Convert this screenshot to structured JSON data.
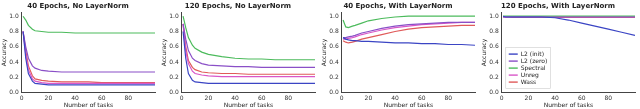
{
  "chart_data": [
    {
      "type": "line",
      "title": "40 Epochs, No LayerNorm",
      "x_label": "Number of tasks",
      "y_label": "Accuracy",
      "x": [
        1,
        3,
        5,
        8,
        10,
        15,
        20,
        30,
        40,
        50,
        60,
        70,
        80,
        90,
        100
      ],
      "xlim": [
        0,
        100
      ],
      "xticks": [
        0,
        20,
        40,
        60,
        80
      ],
      "ylim": [
        0,
        1.05
      ],
      "yticks": [
        {
          "value": 0,
          "label": "0.0"
        },
        {
          "value": 0.2,
          "label": "0.2"
        },
        {
          "value": 0.4,
          "label": "0.4"
        },
        {
          "value": 0.6,
          "label": "0.6"
        },
        {
          "value": 0.8,
          "label": "0.8"
        },
        {
          "value": 1,
          "label": "1.0"
        }
      ],
      "grid": false,
      "series": [
        {
          "name": "L2 (init)",
          "color": "#3b45c4",
          "values": [
            0.8,
            0.45,
            0.25,
            0.15,
            0.12,
            0.11,
            0.1,
            0.1,
            0.1,
            0.1,
            0.1,
            0.1,
            0.1,
            0.1,
            0.1
          ]
        },
        {
          "name": "L2 (zero)",
          "color": "#8a4fc7",
          "values": [
            0.8,
            0.6,
            0.45,
            0.35,
            0.32,
            0.29,
            0.28,
            0.27,
            0.27,
            0.27,
            0.27,
            0.27,
            0.27,
            0.27,
            0.27
          ]
        },
        {
          "name": "Spectral",
          "color": "#4cbb5c",
          "values": [
            1.0,
            0.95,
            0.88,
            0.83,
            0.81,
            0.8,
            0.79,
            0.79,
            0.78,
            0.78,
            0.78,
            0.78,
            0.78,
            0.78,
            0.78
          ]
        },
        {
          "name": "Unreg",
          "color": "#d957c8",
          "values": [
            0.8,
            0.5,
            0.3,
            0.18,
            0.15,
            0.13,
            0.12,
            0.12,
            0.12,
            0.12,
            0.12,
            0.12,
            0.12,
            0.12,
            0.12
          ]
        },
        {
          "name": "Wass",
          "color": "#e05a5a",
          "values": [
            0.8,
            0.55,
            0.35,
            0.22,
            0.18,
            0.16,
            0.15,
            0.14,
            0.14,
            0.14,
            0.13,
            0.13,
            0.13,
            0.13,
            0.13
          ]
        }
      ]
    },
    {
      "type": "line",
      "title": "120 Epochs, No LayerNorm",
      "x_label": "Number of tasks",
      "y_label": "Accuracy",
      "x": [
        1,
        3,
        5,
        8,
        10,
        15,
        20,
        30,
        40,
        50,
        60,
        70,
        80,
        90,
        100
      ],
      "xlim": [
        0,
        100
      ],
      "xticks": [
        0,
        20,
        40,
        60,
        80
      ],
      "ylim": [
        0,
        1.05
      ],
      "yticks": [
        {
          "value": 0,
          "label": "0.0"
        },
        {
          "value": 0.2,
          "label": "0.2"
        },
        {
          "value": 0.4,
          "label": "0.4"
        },
        {
          "value": 0.6,
          "label": "0.6"
        },
        {
          "value": 0.8,
          "label": "0.8"
        },
        {
          "value": 1,
          "label": "1.0"
        }
      ],
      "grid": false,
      "series": [
        {
          "name": "L2 (init)",
          "color": "#3b45c4",
          "values": [
            0.8,
            0.45,
            0.25,
            0.16,
            0.14,
            0.13,
            0.12,
            0.12,
            0.12,
            0.12,
            0.12,
            0.12,
            0.12,
            0.12,
            0.12
          ]
        },
        {
          "name": "L2 (zero)",
          "color": "#8a4fc7",
          "values": [
            0.9,
            0.7,
            0.55,
            0.45,
            0.42,
            0.38,
            0.36,
            0.35,
            0.34,
            0.34,
            0.33,
            0.33,
            0.33,
            0.33,
            0.33
          ]
        },
        {
          "name": "Spectral",
          "color": "#4cbb5c",
          "values": [
            1.0,
            0.85,
            0.72,
            0.62,
            0.58,
            0.53,
            0.5,
            0.47,
            0.45,
            0.44,
            0.44,
            0.43,
            0.43,
            0.43,
            0.43
          ]
        },
        {
          "name": "Unreg",
          "color": "#d957c8",
          "values": [
            0.9,
            0.55,
            0.38,
            0.28,
            0.25,
            0.23,
            0.22,
            0.21,
            0.21,
            0.21,
            0.21,
            0.21,
            0.21,
            0.21,
            0.21
          ]
        },
        {
          "name": "Wass",
          "color": "#e05a5a",
          "values": [
            0.9,
            0.6,
            0.42,
            0.33,
            0.3,
            0.27,
            0.26,
            0.25,
            0.25,
            0.24,
            0.24,
            0.24,
            0.24,
            0.24,
            0.24
          ]
        }
      ]
    },
    {
      "type": "line",
      "title": "40 Epochs, With LayerNorm",
      "x_label": "Number of tasks",
      "y_label": "Accuracy",
      "x": [
        1,
        3,
        5,
        8,
        10,
        15,
        20,
        30,
        40,
        50,
        60,
        70,
        80,
        90,
        100
      ],
      "xlim": [
        0,
        100
      ],
      "xticks": [
        0,
        20,
        40,
        60,
        80
      ],
      "ylim": [
        0,
        1.05
      ],
      "yticks": [
        {
          "value": 0,
          "label": "0.0"
        },
        {
          "value": 0.2,
          "label": "0.2"
        },
        {
          "value": 0.4,
          "label": "0.4"
        },
        {
          "value": 0.6,
          "label": "0.6"
        },
        {
          "value": 0.8,
          "label": "0.8"
        },
        {
          "value": 1,
          "label": "1.0"
        }
      ],
      "grid": false,
      "series": [
        {
          "name": "L2 (init)",
          "color": "#3b45c4",
          "values": [
            0.72,
            0.7,
            0.69,
            0.68,
            0.68,
            0.67,
            0.67,
            0.66,
            0.65,
            0.65,
            0.64,
            0.64,
            0.63,
            0.63,
            0.62
          ]
        },
        {
          "name": "L2 (zero)",
          "color": "#8a4fc7",
          "values": [
            0.72,
            0.72,
            0.73,
            0.74,
            0.75,
            0.78,
            0.8,
            0.84,
            0.87,
            0.89,
            0.9,
            0.91,
            0.92,
            0.92,
            0.92
          ]
        },
        {
          "name": "Spectral",
          "color": "#4cbb5c",
          "values": [
            0.95,
            0.86,
            0.85,
            0.87,
            0.88,
            0.91,
            0.94,
            0.97,
            0.99,
            1.0,
            1.0,
            1.0,
            1.0,
            1.0,
            1.0
          ]
        },
        {
          "name": "Unreg",
          "color": "#d957c8",
          "values": [
            0.7,
            0.7,
            0.71,
            0.72,
            0.73,
            0.76,
            0.78,
            0.82,
            0.85,
            0.87,
            0.89,
            0.9,
            0.91,
            0.92,
            0.92
          ]
        },
        {
          "name": "Wass",
          "color": "#e05a5a",
          "values": [
            0.68,
            0.66,
            0.65,
            0.66,
            0.67,
            0.7,
            0.72,
            0.76,
            0.8,
            0.83,
            0.85,
            0.86,
            0.87,
            0.88,
            0.88
          ]
        }
      ]
    },
    {
      "type": "line",
      "title": "120 Epochs, With LayerNorm",
      "x_label": "Number of tasks",
      "y_label": "Accuracy",
      "x": [
        1,
        3,
        5,
        8,
        10,
        15,
        20,
        30,
        40,
        50,
        60,
        70,
        80,
        90,
        100
      ],
      "xlim": [
        0,
        100
      ],
      "xticks": [
        0,
        20,
        40,
        60,
        80
      ],
      "ylim": [
        0,
        1.05
      ],
      "yticks": [
        {
          "value": 0,
          "label": "0.0"
        },
        {
          "value": 0.2,
          "label": "0.2"
        },
        {
          "value": 0.4,
          "label": "0.4"
        },
        {
          "value": 0.6,
          "label": "0.6"
        },
        {
          "value": 0.8,
          "label": "0.8"
        },
        {
          "value": 1,
          "label": "1.0"
        }
      ],
      "grid": false,
      "legend": "lower left",
      "series": [
        {
          "name": "L2 (init)",
          "color": "#3b45c4",
          "values": [
            1.0,
            0.99,
            0.99,
            0.99,
            0.99,
            0.99,
            0.99,
            0.99,
            0.98,
            0.95,
            0.91,
            0.87,
            0.83,
            0.79,
            0.75
          ]
        },
        {
          "name": "L2 (zero)",
          "color": "#8a4fc7",
          "values": [
            0.99,
            0.99,
            0.99,
            0.99,
            0.99,
            0.99,
            0.99,
            0.99,
            0.99,
            0.99,
            0.99,
            0.99,
            0.99,
            0.99,
            0.99
          ]
        },
        {
          "name": "Spectral",
          "color": "#4cbb5c",
          "values": [
            1.0,
            1.0,
            1.0,
            1.0,
            1.0,
            1.0,
            1.0,
            1.0,
            1.0,
            1.0,
            1.0,
            1.0,
            1.0,
            1.0,
            1.0
          ]
        },
        {
          "name": "Unreg",
          "color": "#d957c8",
          "values": [
            0.99,
            0.99,
            0.99,
            0.99,
            0.99,
            0.99,
            0.99,
            0.99,
            0.99,
            0.99,
            0.99,
            0.99,
            0.99,
            0.99,
            0.99
          ]
        },
        {
          "name": "Wass",
          "color": "#e05a5a",
          "values": [
            0.99,
            0.99,
            0.99,
            0.985,
            0.985,
            0.985,
            0.985,
            0.985,
            0.985,
            0.985,
            0.985,
            0.985,
            0.985,
            0.985,
            0.985
          ]
        }
      ]
    }
  ]
}
